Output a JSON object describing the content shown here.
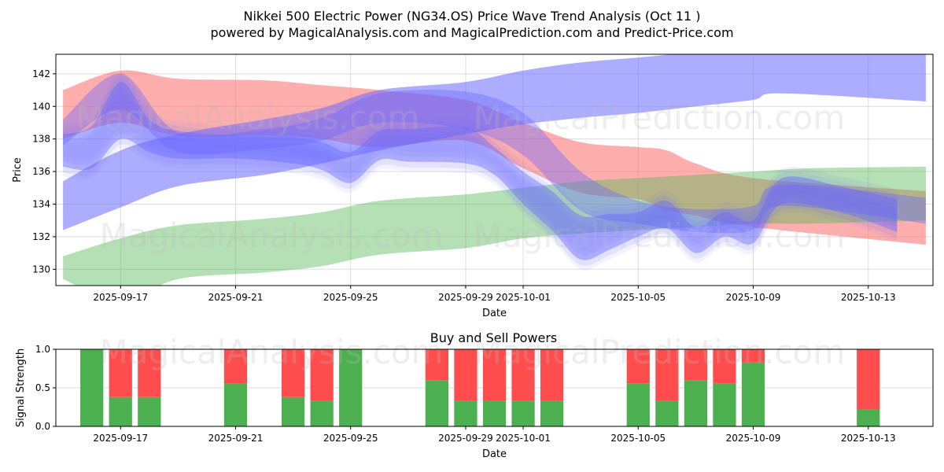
{
  "colors": {
    "buy": "#4caf50",
    "sell": "#ff4d4d",
    "band_red": "#ff6b6b",
    "band_blue": "#6a6aff",
    "band_green": "#5cb85c",
    "grid": "#dddddd",
    "frame": "#000000"
  },
  "chart_data": [
    {
      "type": "area",
      "title": "Nikkei 500 Electric Power (NG34.OS) Price Wave Trend Analysis (Oct 11 )",
      "subtitle": "powered by MagicalAnalysis.com and MagicalPrediction.com and Predict-Price.com",
      "xlabel": "Date",
      "ylabel": "Price",
      "xlim": [
        "2025-09-14T18:00",
        "2025-10-15T06:00"
      ],
      "ylim": [
        129.0,
        143.2
      ],
      "yticks": [
        130,
        132,
        134,
        136,
        138,
        140,
        142
      ],
      "xticks": [
        "2025-09-17",
        "2025-09-21",
        "2025-09-25",
        "2025-09-29",
        "2025-10-01",
        "2025-10-05",
        "2025-10-09",
        "2025-10-13"
      ],
      "grid": true,
      "watermarks": [
        "MagicalAnalysis.com",
        "MagicalPrediction.com",
        "MagicalAnalysis.com",
        "MagicalPrediction.com"
      ],
      "bands": [
        {
          "name": "red-trend-band",
          "color": "red",
          "opacity": 0.55,
          "dates": [
            "2025-09-15",
            "2025-09-17",
            "2025-09-19",
            "2025-09-22",
            "2025-09-24",
            "2025-09-26",
            "2025-09-29",
            "2025-10-01",
            "2025-10-03",
            "2025-10-05",
            "2025-10-06",
            "2025-10-07",
            "2025-10-09",
            "2025-10-15"
          ],
          "upper": [
            141.0,
            142.2,
            141.7,
            141.6,
            141.3,
            141.0,
            140.4,
            139.0,
            137.8,
            137.5,
            137.3,
            136.5,
            135.6,
            134.8
          ],
          "lower": [
            138.0,
            139.0,
            138.2,
            138.2,
            138.0,
            137.5,
            137.9,
            136.2,
            134.7,
            134.3,
            133.6,
            133.3,
            132.6,
            131.5
          ]
        },
        {
          "name": "blue-trend-band",
          "color": "blue",
          "opacity": 0.55,
          "dates": [
            "2025-09-15",
            "2025-09-17",
            "2025-09-19",
            "2025-09-22",
            "2025-09-24",
            "2025-09-26",
            "2025-09-29",
            "2025-10-01",
            "2025-10-03",
            "2025-10-05",
            "2025-10-07",
            "2025-10-09",
            "2025-10-10",
            "2025-10-15"
          ],
          "upper": [
            135.4,
            137.3,
            138.3,
            139.2,
            139.9,
            141.0,
            141.5,
            142.2,
            142.7,
            143.0,
            143.3,
            143.3,
            143.3,
            143.3
          ],
          "lower": [
            132.4,
            133.8,
            135.1,
            135.8,
            136.5,
            137.3,
            138.3,
            138.9,
            139.3,
            139.6,
            140.0,
            140.4,
            140.8,
            140.3
          ]
        },
        {
          "name": "green-trend-band",
          "color": "green",
          "opacity": 0.45,
          "dates": [
            "2025-09-15",
            "2025-09-17",
            "2025-09-19",
            "2025-09-22",
            "2025-09-24",
            "2025-09-26",
            "2025-09-29",
            "2025-10-01",
            "2025-10-03",
            "2025-10-05",
            "2025-10-07",
            "2025-10-09",
            "2025-10-11",
            "2025-10-15"
          ],
          "upper": [
            130.8,
            131.9,
            132.7,
            133.1,
            133.5,
            134.2,
            134.6,
            135.0,
            135.4,
            135.6,
            135.8,
            136.0,
            136.2,
            136.3
          ],
          "lower": [
            129.4,
            128.0,
            129.4,
            129.8,
            130.2,
            130.9,
            131.3,
            131.9,
            132.2,
            132.4,
            132.6,
            132.8,
            132.8,
            133.0
          ]
        },
        {
          "name": "price-wave-band",
          "color": "blue",
          "opacity": 0.45,
          "dates": [
            "2025-09-15",
            "2025-09-16",
            "2025-09-17",
            "2025-09-18",
            "2025-09-19",
            "2025-09-21",
            "2025-09-23",
            "2025-09-24",
            "2025-09-25",
            "2025-09-26",
            "2025-09-27",
            "2025-09-29",
            "2025-09-30",
            "2025-10-01",
            "2025-10-02",
            "2025-10-03",
            "2025-10-04",
            "2025-10-05",
            "2025-10-06",
            "2025-10-07",
            "2025-10-08",
            "2025-10-09",
            "2025-10-10",
            "2025-10-12",
            "2025-10-14"
          ],
          "upper": [
            138.3,
            138.8,
            141.5,
            139.2,
            138.5,
            138.2,
            138.1,
            137.8,
            137.2,
            138.5,
            138.6,
            138.7,
            137.5,
            136.0,
            134.8,
            133.3,
            133.4,
            133.5,
            134.2,
            132.6,
            133.5,
            133.0,
            135.6,
            135.1,
            134.3
          ],
          "lower": [
            136.3,
            136.2,
            138.0,
            137.2,
            136.8,
            136.8,
            136.5,
            136.1,
            135.3,
            136.7,
            136.6,
            136.5,
            135.8,
            134.0,
            132.4,
            130.6,
            131.2,
            132.0,
            132.5,
            131.0,
            132.0,
            131.6,
            134.0,
            133.5,
            132.3
          ]
        },
        {
          "name": "purple-overlap-band",
          "color": "blue",
          "opacity": 0.4,
          "dates": [
            "2025-09-15",
            "2025-09-17",
            "2025-09-19",
            "2025-09-22",
            "2025-09-24",
            "2025-09-26",
            "2025-09-29",
            "2025-10-01",
            "2025-10-03",
            "2025-10-05",
            "2025-10-07",
            "2025-10-09",
            "2025-10-10",
            "2025-10-15"
          ],
          "upper": [
            139.2,
            142.0,
            138.4,
            138.6,
            139.3,
            140.8,
            140.9,
            139.6,
            136.0,
            134.2,
            133.7,
            133.9,
            135.2,
            134.4
          ],
          "lower": [
            137.6,
            139.8,
            137.2,
            137.4,
            137.9,
            139.0,
            138.6,
            137.0,
            133.6,
            132.8,
            132.3,
            132.4,
            133.9,
            132.8
          ]
        }
      ]
    },
    {
      "type": "bar",
      "title": "Buy and Sell Powers",
      "xlabel": "Date",
      "ylabel": "Signal Strength",
      "xlim": [
        "2025-09-14T18:00",
        "2025-10-15T06:00"
      ],
      "ylim": [
        0,
        1.0
      ],
      "yticks": [
        "0.0",
        "0.5",
        "1.0"
      ],
      "xticks": [
        "2025-09-17",
        "2025-09-21",
        "2025-09-25",
        "2025-09-29",
        "2025-10-01",
        "2025-10-05",
        "2025-10-09",
        "2025-10-13"
      ],
      "grid": true,
      "categories": [
        "2025-09-16",
        "2025-09-17",
        "2025-09-18",
        "2025-09-21",
        "2025-09-23",
        "2025-09-24",
        "2025-09-25",
        "2025-09-28",
        "2025-09-29",
        "2025-09-30",
        "2025-10-01",
        "2025-10-02",
        "2025-10-05",
        "2025-10-06",
        "2025-10-07",
        "2025-10-08",
        "2025-10-09",
        "2025-10-13"
      ],
      "series": [
        {
          "name": "Buy",
          "values": [
            1.0,
            0.38,
            0.38,
            0.56,
            0.38,
            0.33,
            1.0,
            0.6,
            0.33,
            0.33,
            0.33,
            0.33,
            0.56,
            0.33,
            0.6,
            0.56,
            0.83,
            0.22
          ]
        },
        {
          "name": "Sell",
          "values": [
            0.0,
            0.62,
            0.62,
            0.44,
            0.62,
            0.67,
            0.0,
            0.4,
            0.67,
            0.67,
            0.67,
            0.67,
            0.44,
            0.67,
            0.4,
            0.44,
            0.17,
            0.78
          ]
        }
      ]
    }
  ]
}
